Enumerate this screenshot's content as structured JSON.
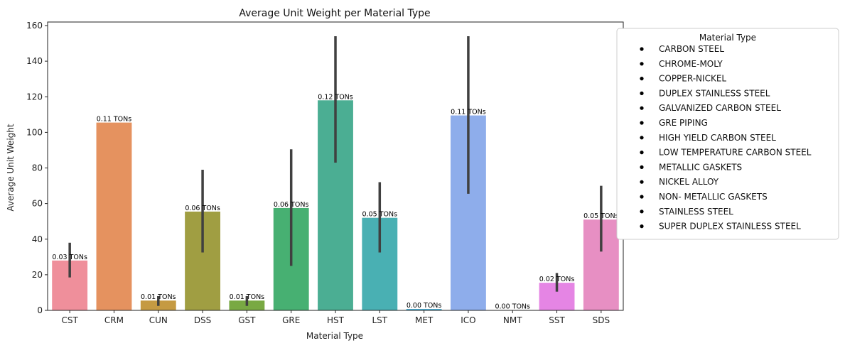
{
  "chart_data": {
    "type": "bar",
    "title": "Average Unit Weight per Material Type",
    "xlabel": "Material Type",
    "ylabel": "Average Unit Weight",
    "ylim": [
      0,
      162
    ],
    "yticks": [
      0,
      20,
      40,
      60,
      80,
      100,
      120,
      140,
      160
    ],
    "grid": false,
    "categories": [
      "CST",
      "CRM",
      "CUN",
      "DSS",
      "GST",
      "GRE",
      "HST",
      "LST",
      "MET",
      "ICO",
      "NMT",
      "SST",
      "SDS"
    ],
    "values": [
      28,
      105.5,
      5.5,
      55.5,
      5.5,
      57.5,
      118,
      52,
      0.8,
      109.5,
      0.2,
      15.5,
      51
    ],
    "error_low": [
      18.5,
      null,
      2.5,
      32.5,
      2.5,
      25,
      83,
      32.5,
      null,
      65.5,
      null,
      10.5,
      33
    ],
    "error_high": [
      38,
      null,
      8,
      79,
      8,
      90.5,
      154,
      72,
      null,
      154,
      null,
      21,
      70
    ],
    "data_labels": [
      "0.03 TONs",
      "0.11 TONs",
      "0.01 TONs",
      "0.06 TONs",
      "0.01 TONs",
      "0.06 TONs",
      "0.12 TONs",
      "0.05 TONs",
      "0.00 TONs",
      "0.11 TONs",
      "0.00 TONs",
      "0.02 TONs",
      "0.05 TONs"
    ],
    "colors": [
      "#ef8f9b",
      "#e5925f",
      "#c59a42",
      "#a09e42",
      "#79a943",
      "#47b072",
      "#4bae93",
      "#49b0b3",
      "#4eadd1",
      "#8eadeb",
      "#c79bea",
      "#e585e4",
      "#e78fc3"
    ],
    "error_color": "#404040",
    "legend": {
      "title": "Material Type",
      "placement": "outside-right-top",
      "entries": [
        "CARBON STEEL",
        "CHROME-MOLY",
        "COPPER-NICKEL",
        "DUPLEX STAINLESS STEEL",
        "GALVANIZED CARBON STEEL",
        "GRE PIPING",
        "HIGH YIELD CARBON STEEL",
        "LOW TEMPERATURE CARBON STEEL",
        "METALLIC GASKETS",
        "NICKEL ALLOY",
        "NON- METALLIC GASKETS",
        "STAINLESS STEEL",
        "SUPER DUPLEX STAINLESS STEEL"
      ]
    }
  }
}
